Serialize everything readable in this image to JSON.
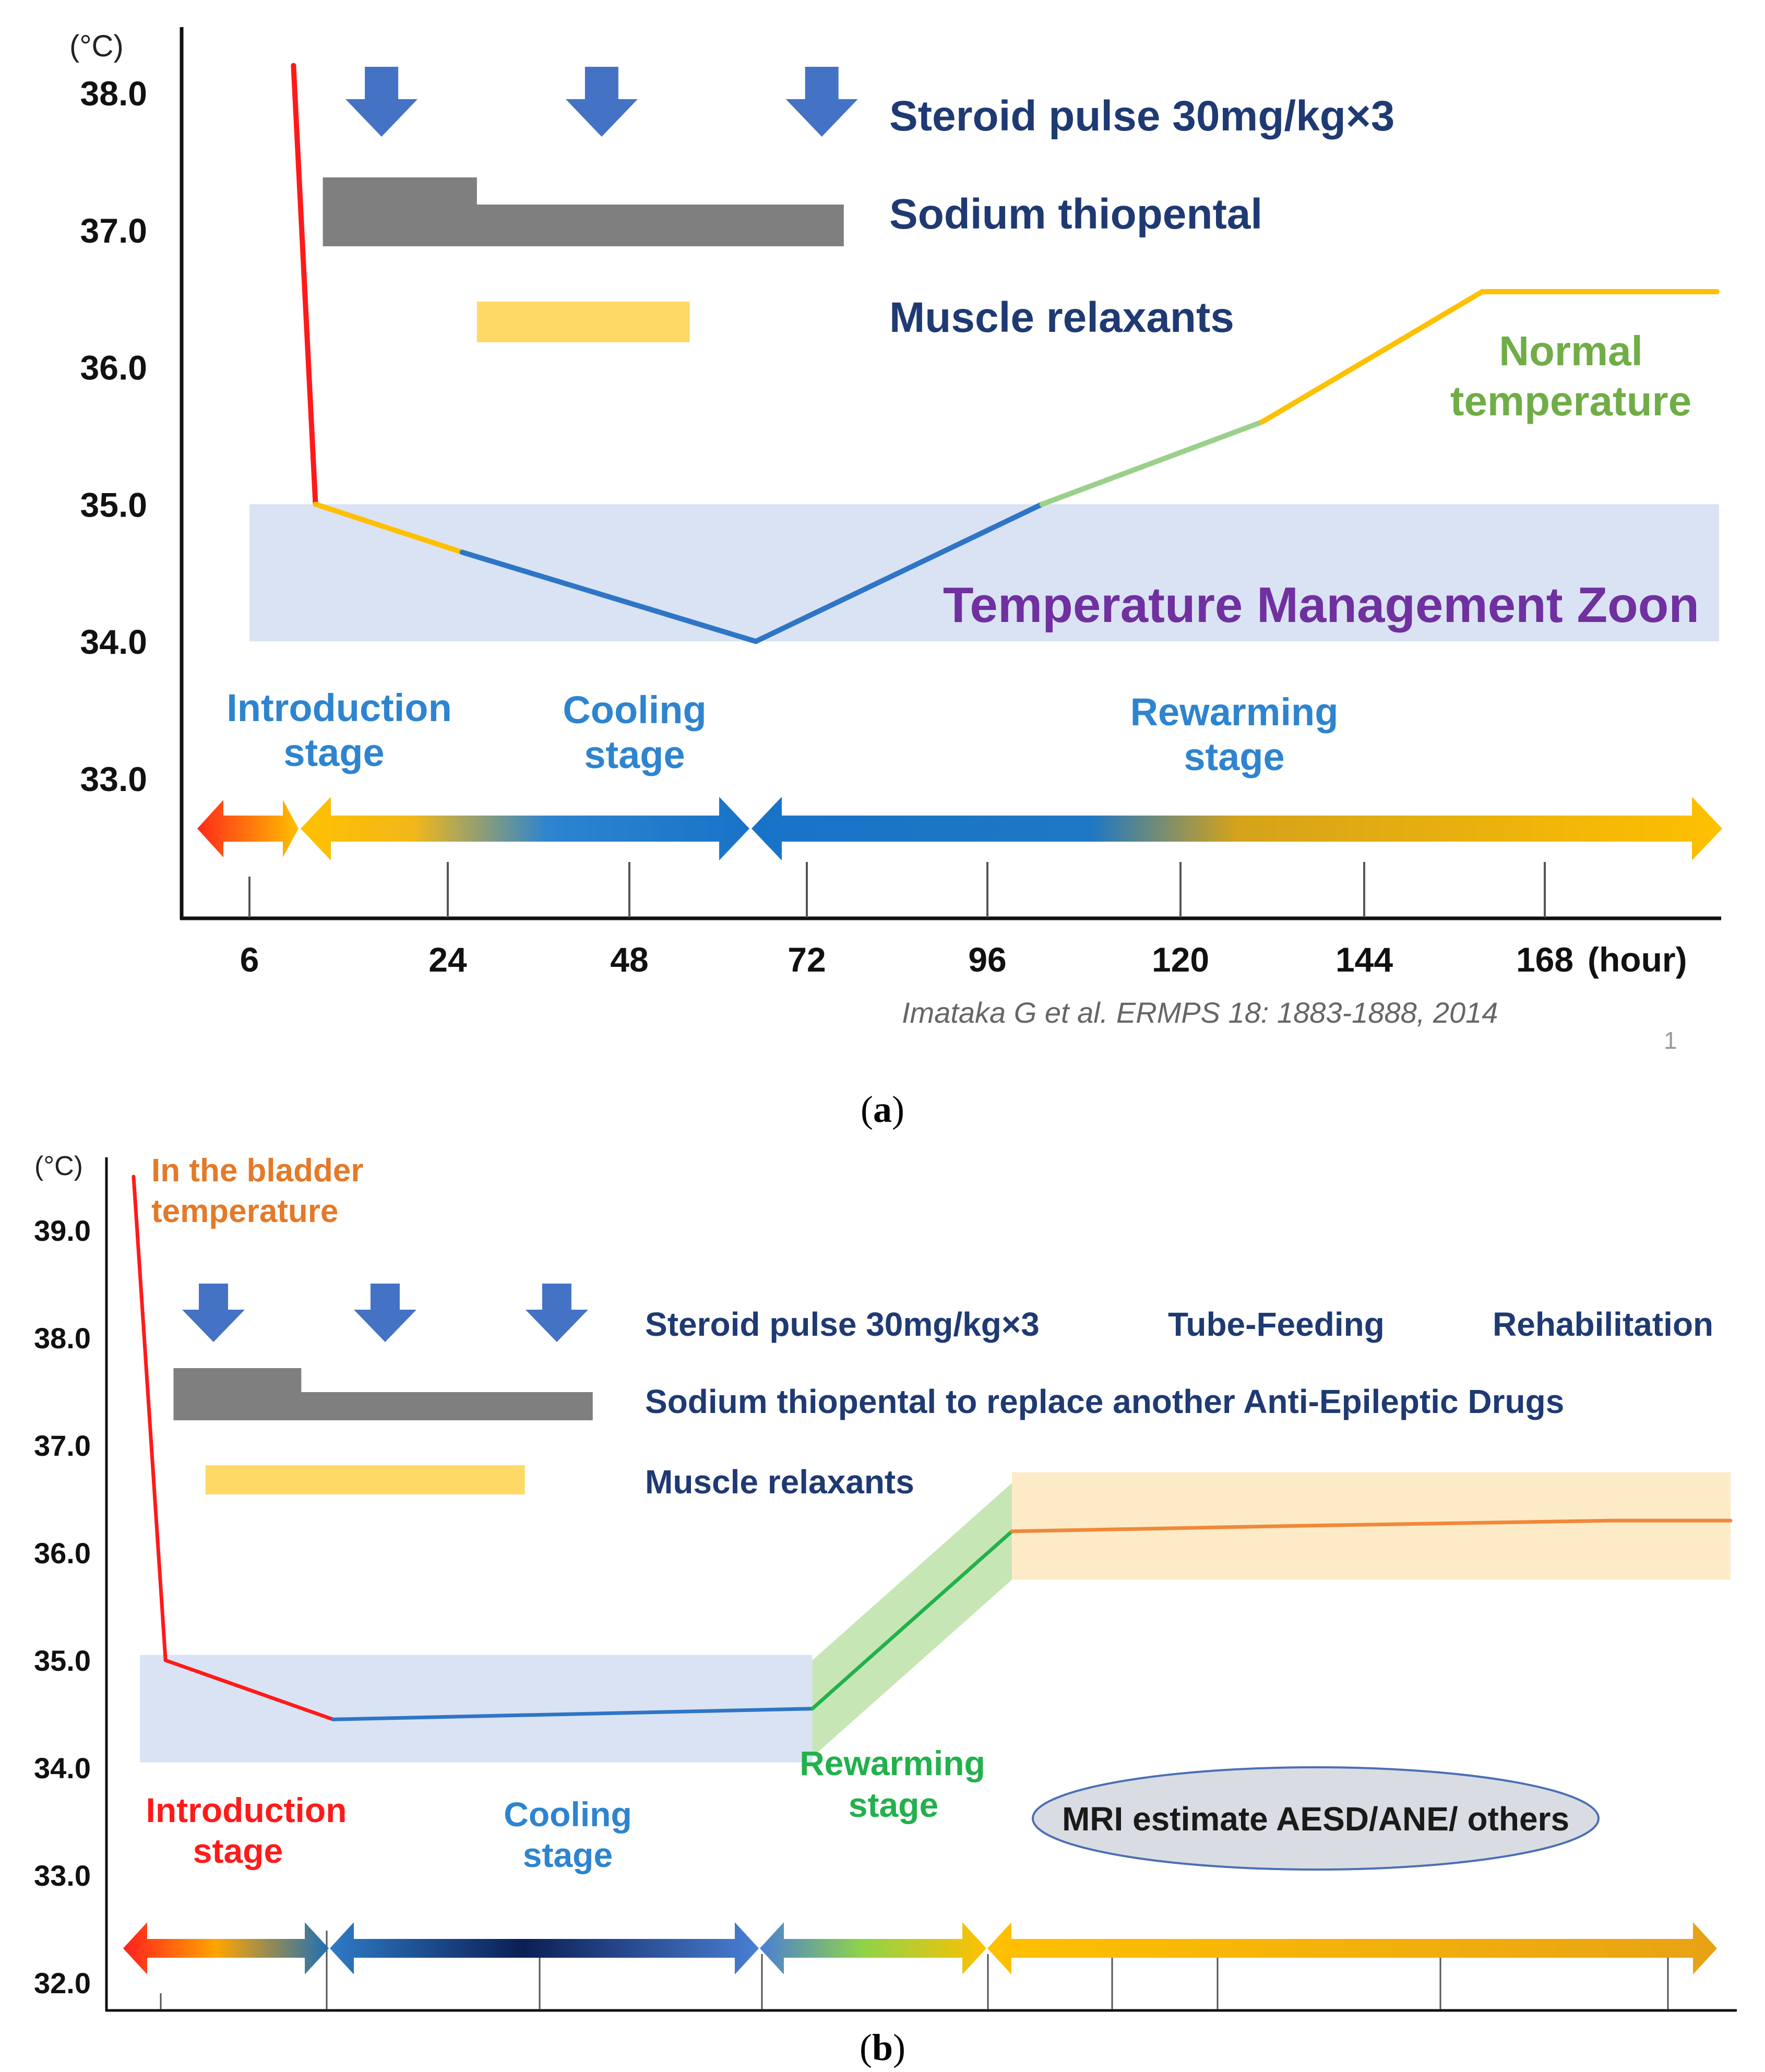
{
  "colors": {
    "navy": "#1f3a73",
    "arrow_blue": "#4472c4",
    "bar_gray": "#7f7f7f",
    "bar_yellow": "#ffd966",
    "zone_blue": "#dae3f3",
    "red": "#ff1a1a",
    "orange_line": "#ffc000",
    "blue_line": "#2e75c6",
    "green_line": "#9bd08a",
    "green_text": "#70ad47",
    "purple_text": "#7030a0",
    "stage_blue": "#2e84cf",
    "orange_text": "#e37a2a",
    "green_b": "#22b14c",
    "rehab_line": "#f0883a",
    "rehab_band": "#fdebc8",
    "green_band": "#c7e6b5"
  },
  "panel_a": {
    "caption_open": "(",
    "caption_letter": "a",
    "caption_close": ")",
    "chart_data": {
      "type": "line",
      "unit_label": "(°C)",
      "y_ticks": [
        "38.0",
        "37.0",
        "36.0",
        "35.0",
        "34.0",
        "33.0"
      ],
      "ylim": [
        32.0,
        38.6
      ],
      "x_ticks": [
        "6",
        "24",
        "48",
        "72",
        "96",
        "120",
        "144",
        "168"
      ],
      "x_unit": "(hour)",
      "series": [
        {
          "name": "temperature",
          "x": [
            6,
            9,
            29,
            69,
            108,
            138,
            168,
            200
          ],
          "y": [
            38.2,
            35.0,
            34.65,
            34.0,
            35.0,
            35.6,
            36.55,
            36.55
          ]
        }
      ],
      "zone": {
        "y_from": 34.0,
        "y_to": 35.0,
        "label": "Temperature Management Zoon"
      },
      "treatments": [
        {
          "label": "Steroid pulse 30mg/kg×3",
          "marker": "arrow",
          "x": [
            18,
            48,
            78
          ]
        },
        {
          "label": "Sodium thiopental",
          "bar_from": 10,
          "bar_to": 81,
          "step_at": 31
        },
        {
          "label": "Muscle relaxants",
          "bar_from": 31,
          "bar_to": 60
        }
      ],
      "annotations": [
        {
          "line1": "Normal",
          "line2": "temperature"
        }
      ],
      "stages": [
        {
          "line1": "Introduction",
          "line2": "stage"
        },
        {
          "line1": "Cooling",
          "line2": "stage"
        },
        {
          "line1": "Rewarming",
          "line2": "stage"
        }
      ],
      "citation": "Imataka G et al. ERMPS 18: 1883-1888, 2014",
      "page_number": "1"
    }
  },
  "panel_b": {
    "caption_open": "(",
    "caption_letter": "b",
    "caption_close": ")",
    "chart_data": {
      "type": "line",
      "unit_label": "(°C)",
      "y_ticks": [
        "39.0",
        "38.0",
        "37.0",
        "36.0",
        "35.0",
        "34.0",
        "33.0",
        "32.0"
      ],
      "ylim": [
        31.6,
        39.7
      ],
      "series": [
        {
          "name": "bladder temperature",
          "x": [
            0,
            8,
            50,
            170,
            220,
            290,
            370,
            400
          ],
          "y": [
            39.5,
            35.0,
            34.45,
            34.55,
            36.2,
            36.25,
            36.3,
            36.3
          ]
        }
      ],
      "zone": {
        "y_from": 34.05,
        "y_to": 35.05
      },
      "bands": [
        {
          "name": "rewarming band",
          "x_from": 170,
          "x_to": 220,
          "half_width": 0.45
        },
        {
          "name": "rehabilitation band",
          "x_from": 220,
          "x_to": 400,
          "y_from": 35.75,
          "y_to": 36.75
        }
      ],
      "treatments": [
        {
          "label": "Steroid pulse 30mg/kg×3",
          "marker": "arrow",
          "x": [
            20,
            63,
            106
          ]
        },
        {
          "label": "Sodium thiopental  to replace another Anti-Epileptic Drugs",
          "bar_from": 10,
          "bar_to": 115,
          "step_at": 42
        },
        {
          "label": "Muscle relaxants",
          "bar_from": 18,
          "bar_to": 98
        }
      ],
      "labels": {
        "bladder_line1": "In the bladder",
        "bladder_line2": "temperature",
        "tube_feeding": "Tube-Feeding",
        "rehabilitation": "Rehabilitation",
        "mri": "MRI estimate AESD/ANE/ others"
      },
      "stages": [
        {
          "line1": "Introduction",
          "line2": "stage"
        },
        {
          "line1": "Cooling",
          "line2": "stage"
        },
        {
          "line1": "Rewarming",
          "line2": "stage"
        }
      ]
    }
  }
}
